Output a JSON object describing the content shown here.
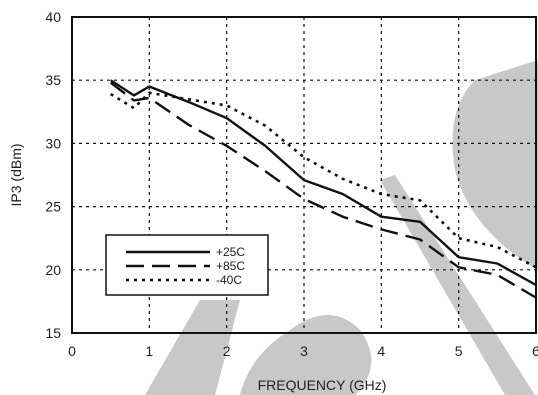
{
  "chart_data": {
    "type": "line",
    "xlabel": "FREQUENCY (GHz)",
    "ylabel": "IP3 (dBm)",
    "xlim": [
      0,
      6
    ],
    "ylim": [
      15,
      40
    ],
    "xticks": [
      "0",
      "1",
      "2",
      "3",
      "4",
      "5",
      "6"
    ],
    "yticks": [
      "15",
      "20",
      "25",
      "30",
      "35",
      "40"
    ],
    "grid": true,
    "legend_position": "lower-left",
    "watermark_color": "#c8c8c8",
    "series": [
      {
        "name": "+25C",
        "style": "solid",
        "color": "#111111",
        "x": [
          0.5,
          0.8,
          1.0,
          1.5,
          2.0,
          2.5,
          3.0,
          3.5,
          4.0,
          4.5,
          5.0,
          5.5,
          6.0
        ],
        "y": [
          35.0,
          33.8,
          34.5,
          33.3,
          32.0,
          29.8,
          27.1,
          26.0,
          24.2,
          23.8,
          21.0,
          20.5,
          18.8
        ]
      },
      {
        "name": "+85C",
        "style": "dash",
        "color": "#111111",
        "x": [
          0.5,
          0.8,
          1.0,
          1.5,
          2.0,
          2.5,
          3.0,
          3.5,
          4.0,
          4.5,
          5.0,
          5.5,
          6.0
        ],
        "y": [
          34.8,
          33.4,
          33.6,
          31.5,
          29.8,
          27.8,
          25.6,
          24.2,
          23.2,
          22.4,
          20.2,
          19.6,
          17.8
        ]
      },
      {
        "name": "-40C",
        "style": "dot",
        "color": "#111111",
        "x": [
          0.5,
          0.8,
          1.0,
          1.5,
          2.0,
          2.5,
          3.0,
          3.5,
          4.0,
          4.5,
          5.0,
          5.5,
          6.0
        ],
        "y": [
          33.9,
          32.8,
          34.0,
          33.5,
          33.0,
          31.4,
          28.9,
          27.2,
          26.0,
          25.5,
          22.5,
          21.8,
          20.2
        ]
      }
    ]
  }
}
